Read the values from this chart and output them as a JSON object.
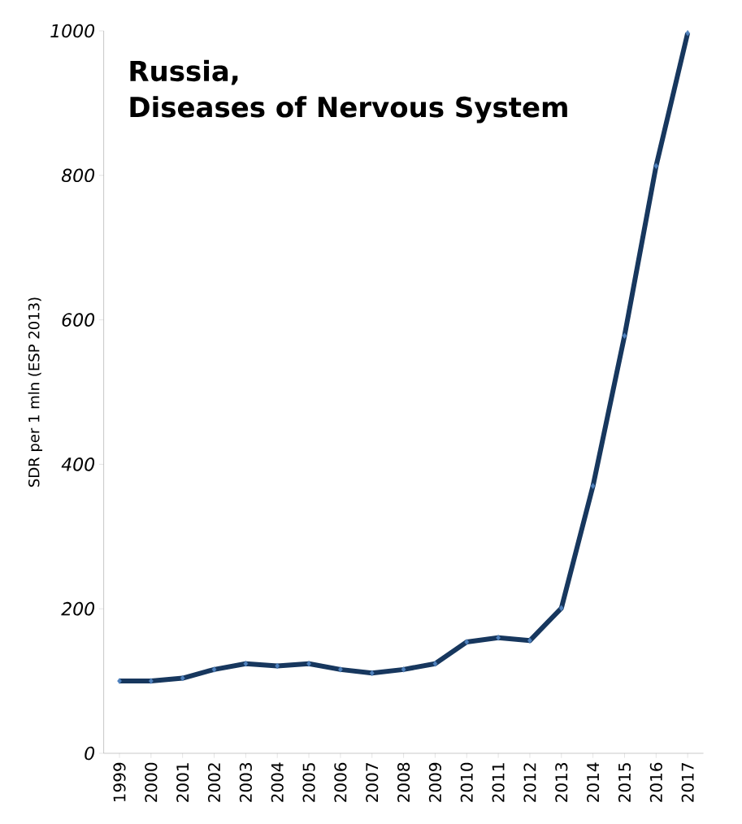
{
  "chart_data": {
    "type": "line",
    "title": "Russia,",
    "subtitle": "Diseases of Nervous System",
    "ylabel": "SDR per 1 mln (ESP 2013)",
    "categories": [
      "1999",
      "2000",
      "2001",
      "2002",
      "2003",
      "2004",
      "2005",
      "2006",
      "2007",
      "2008",
      "2009",
      "2010",
      "2011",
      "2012",
      "2013",
      "2014",
      "2015",
      "2016",
      "2017"
    ],
    "series": [
      {
        "color": "#17375e",
        "values": [
          100,
          100,
          104,
          116,
          124,
          121,
          124,
          116,
          111,
          116,
          124,
          154,
          160,
          156,
          201,
          370,
          578,
          813,
          997
        ]
      }
    ],
    "ylim": [
      0,
      1000
    ],
    "yticks": [
      0,
      200,
      400,
      600,
      800,
      1000
    ],
    "grid": false,
    "marker": "diamond",
    "line_style": "solid"
  }
}
